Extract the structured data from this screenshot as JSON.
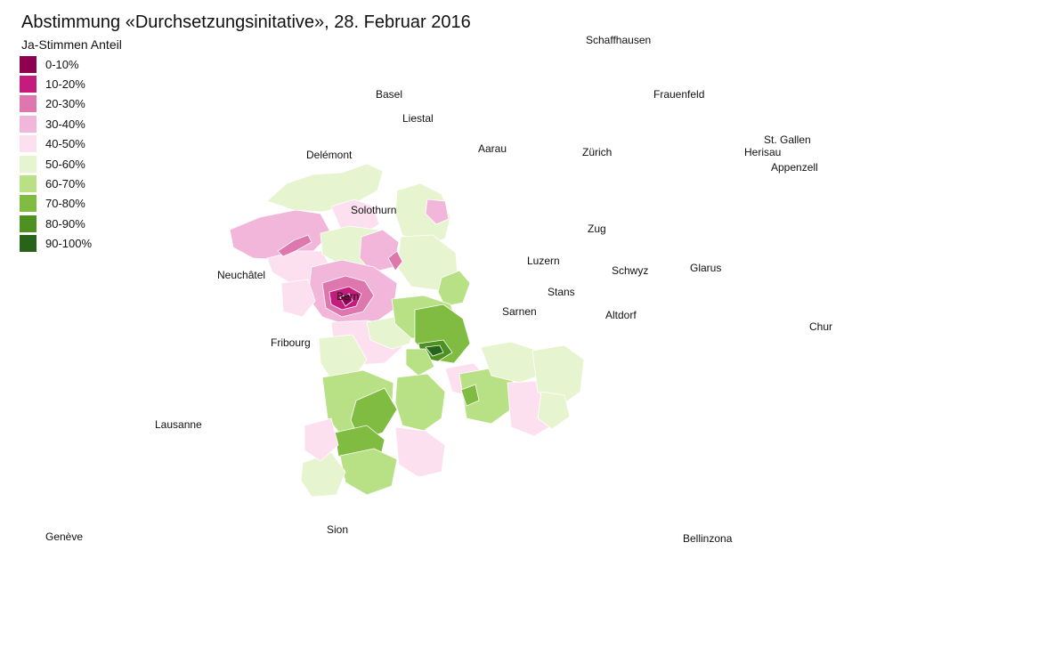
{
  "title": "Abstimmung «Durchsetzungsinitative», 28. Februar 2016",
  "legend": {
    "title": "Ja-Stimmen Anteil",
    "items": [
      {
        "label": "0-10%",
        "color": "#8e0152"
      },
      {
        "label": "10-20%",
        "color": "#c51b7d"
      },
      {
        "label": "20-30%",
        "color": "#de77ae"
      },
      {
        "label": "30-40%",
        "color": "#f1b6da"
      },
      {
        "label": "40-50%",
        "color": "#fde0ef"
      },
      {
        "label": "50-60%",
        "color": "#e6f5d0"
      },
      {
        "label": "60-70%",
        "color": "#b8e186"
      },
      {
        "label": "70-80%",
        "color": "#7fbc41"
      },
      {
        "label": "80-90%",
        "color": "#4d9221"
      },
      {
        "label": "90-100%",
        "color": "#276419"
      }
    ]
  },
  "cities": {
    "schaffhausen": "Schaffhausen",
    "basel": "Basel",
    "frauenfeld": "Frauenfeld",
    "liestal": "Liestal",
    "aarau": "Aarau",
    "zuerich": "Zürich",
    "st_gallen": "St. Gallen",
    "herisau": "Herisau",
    "appenzell": "Appenzell",
    "delemont": "Delémont",
    "solothurn": "Solothurn",
    "zug": "Zug",
    "luzern": "Luzern",
    "schwyz": "Schwyz",
    "glarus": "Glarus",
    "neuchatel": "Neuchâtel",
    "bern": "Bern",
    "stans": "Stans",
    "sarnen": "Sarnen",
    "altdorf": "Altdorf",
    "chur": "Chur",
    "fribourg": "Fribourg",
    "lausanne": "Lausanne",
    "sion": "Sion",
    "geneve": "Genève",
    "bellinzona": "Bellinzona"
  }
}
